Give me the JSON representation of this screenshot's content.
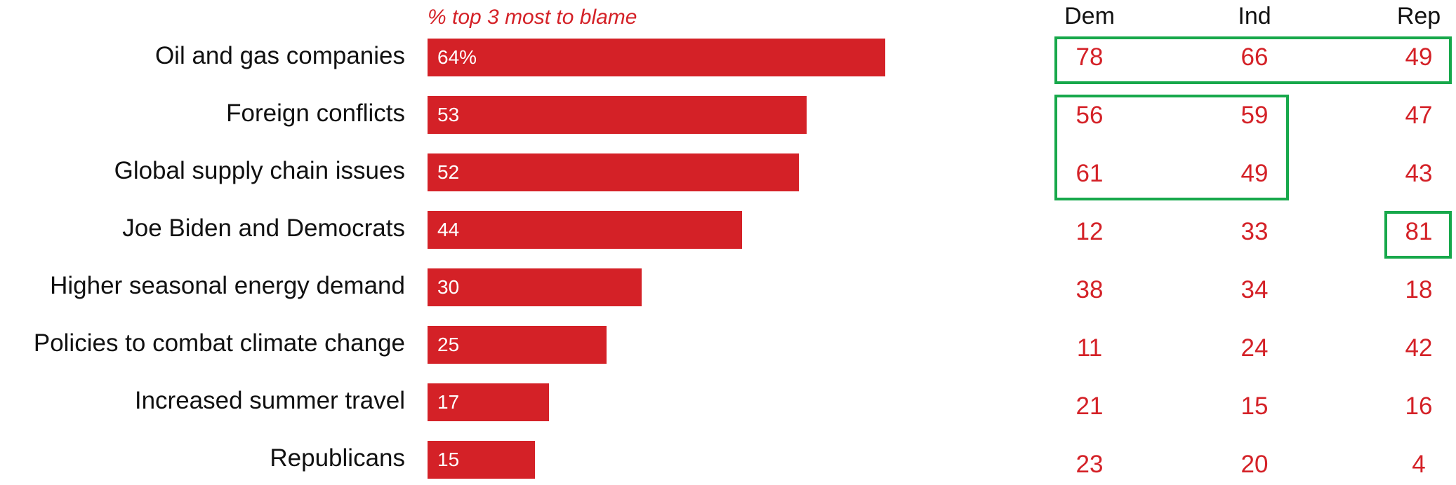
{
  "chart_data": {
    "type": "bar",
    "orientation": "horizontal",
    "subtitle": "% top 3 most to blame",
    "categories": [
      "Oil and gas companies",
      "Foreign conflicts",
      "Global supply chain issues",
      "Joe Biden and Democrats",
      "Higher seasonal energy demand",
      "Policies to combat climate change",
      "Increased summer travel",
      "Republicans"
    ],
    "values": [
      64,
      53,
      52,
      44,
      30,
      25,
      17,
      15
    ],
    "value_labels": [
      "64%",
      "53",
      "52",
      "44",
      "30",
      "25",
      "17",
      "15"
    ],
    "xlim": [
      0,
      100
    ],
    "bar_color": "#d42127",
    "table": {
      "columns": [
        "Dem",
        "Ind",
        "Rep"
      ],
      "rows": [
        [
          78,
          66,
          49
        ],
        [
          56,
          59,
          47
        ],
        [
          61,
          49,
          43
        ],
        [
          12,
          33,
          81
        ],
        [
          38,
          34,
          18
        ],
        [
          11,
          24,
          42
        ],
        [
          21,
          15,
          16
        ],
        [
          23,
          20,
          4
        ]
      ],
      "value_color": "#d42127"
    },
    "highlights": [
      {
        "rows": [
          0,
          0
        ],
        "cols": [
          0,
          2
        ]
      },
      {
        "rows": [
          1,
          2
        ],
        "cols": [
          0,
          1
        ]
      },
      {
        "rows": [
          3,
          3
        ],
        "cols": [
          2,
          2
        ]
      }
    ],
    "highlight_color": "#17a84b"
  }
}
